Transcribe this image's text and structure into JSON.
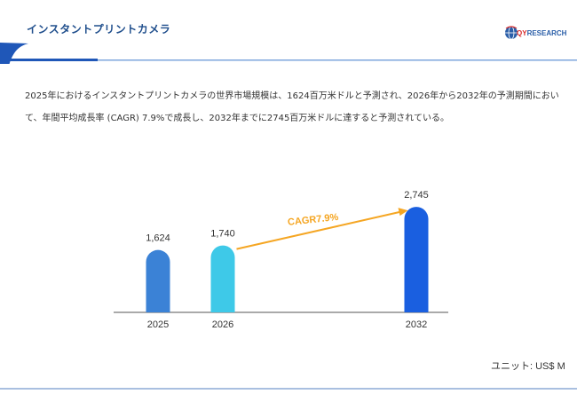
{
  "header": {
    "title": "インスタントプリントカメラ",
    "logo_prefix": "QY",
    "logo_suffix": "RESEARCH"
  },
  "description": "2025年におけるインスタントプリントカメラの世界市場規模は、1624百万米ドルと予測され、2026年から2032年の予測期間において、年間平均成長率 (CAGR) 7.9%で成長し、2032年までに2745百万米ドルに達すると予測されている。",
  "unit_label": "ユニット: US$ M",
  "colors": {
    "title": "#1f4e8c",
    "bar_2025": "#3b82d6",
    "bar_2026": "#3ec9e8",
    "bar_2032": "#1a5fe0",
    "arrow": "#f5a623",
    "axis": "#555555",
    "footer_line": "#a9bfe0"
  },
  "chart_data": {
    "type": "bar",
    "categories": [
      "2025",
      "2026",
      "2032"
    ],
    "values": [
      1624,
      1740,
      2745
    ],
    "value_labels": [
      "1,624",
      "1,740",
      "2,745"
    ],
    "annotation": "CAGR7.9%",
    "ylim": [
      0,
      3000
    ],
    "grid": false
  }
}
